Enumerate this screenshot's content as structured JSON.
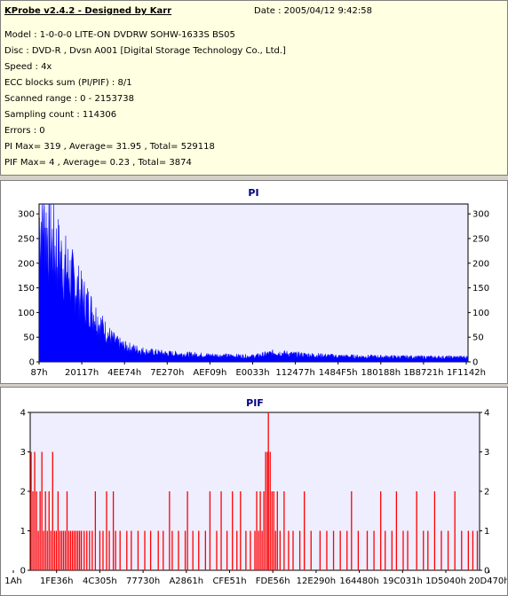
{
  "header": {
    "title": "KProbe v2.4.2 - Designed by Karr",
    "date": "Date : 2005/04/12 9:42:58"
  },
  "info_lines": [
    "Model : 1-0-0-0 LITE-ON DVDRW SOHW-1633S BS05",
    "Disc : DVD-R , Dvsn A001 [Digital Storage Technology Co., Ltd.]",
    "Speed : 4x",
    "ECC blocks sum (PI/PIF) : 8/1",
    "Scanned range : 0 - 2153738",
    "Sampling count : 114306",
    "Errors : 0",
    "PI Max= 319 , Average= 31.95 , Total= 529118",
    "PIF Max= 4 , Average= 0.23 , Total= 3874"
  ],
  "chart_data": [
    {
      "type": "area",
      "title": "PI",
      "color": "#0000ff",
      "background": "#eeeeff",
      "ylim": [
        0,
        320
      ],
      "yticks": [
        0,
        50,
        100,
        150,
        200,
        250,
        300
      ],
      "xticks": [
        "87h",
        "20117h",
        "4EE74h",
        "7E270h",
        "AEF09h",
        "E0033h",
        "112477h",
        "1484F5h",
        "180188h",
        "1B8721h",
        "1F1142h"
      ],
      "x": [
        0,
        0.01,
        0.02,
        0.04,
        0.06,
        0.08,
        0.1,
        0.12,
        0.14,
        0.16,
        0.18,
        0.2,
        0.25,
        0.3,
        0.4,
        0.5,
        0.55,
        0.6,
        0.7,
        0.8,
        0.9,
        1.0
      ],
      "values": [
        300,
        310,
        275,
        240,
        205,
        175,
        140,
        115,
        85,
        60,
        42,
        33,
        22,
        18,
        14,
        12,
        20,
        16,
        12,
        11,
        10,
        10
      ],
      "peak_max": 319
    },
    {
      "type": "bar",
      "title": "PIF",
      "color": "#ff0000",
      "background": "#eeeeff",
      "ylim": [
        0,
        4
      ],
      "yticks": [
        0,
        1,
        2,
        3,
        4
      ],
      "xticks": [
        "1Ah",
        "1FE36h",
        "4C305h",
        "77730h",
        "A2861h",
        "CFE51h",
        "FDE56h",
        "12E290h",
        "164480h",
        "19C031h",
        "1D5040h",
        "20D470h"
      ],
      "points": [
        [
          0.002,
          3
        ],
        [
          0.006,
          2
        ],
        [
          0.01,
          3
        ],
        [
          0.014,
          2
        ],
        [
          0.018,
          1
        ],
        [
          0.022,
          2
        ],
        [
          0.026,
          3
        ],
        [
          0.03,
          1
        ],
        [
          0.034,
          2
        ],
        [
          0.038,
          1
        ],
        [
          0.042,
          2
        ],
        [
          0.046,
          1
        ],
        [
          0.05,
          3
        ],
        [
          0.054,
          1
        ],
        [
          0.058,
          1
        ],
        [
          0.062,
          2
        ],
        [
          0.066,
          1
        ],
        [
          0.07,
          1
        ],
        [
          0.074,
          1
        ],
        [
          0.078,
          1
        ],
        [
          0.082,
          2
        ],
        [
          0.086,
          1
        ],
        [
          0.09,
          1
        ],
        [
          0.094,
          1
        ],
        [
          0.098,
          1
        ],
        [
          0.102,
          1
        ],
        [
          0.106,
          1
        ],
        [
          0.11,
          1
        ],
        [
          0.114,
          1
        ],
        [
          0.12,
          1
        ],
        [
          0.126,
          1
        ],
        [
          0.132,
          1
        ],
        [
          0.138,
          1
        ],
        [
          0.145,
          2
        ],
        [
          0.155,
          1
        ],
        [
          0.162,
          1
        ],
        [
          0.17,
          2
        ],
        [
          0.176,
          1
        ],
        [
          0.185,
          2
        ],
        [
          0.19,
          1
        ],
        [
          0.2,
          1
        ],
        [
          0.215,
          1
        ],
        [
          0.225,
          1
        ],
        [
          0.24,
          1
        ],
        [
          0.255,
          1
        ],
        [
          0.268,
          1
        ],
        [
          0.285,
          1
        ],
        [
          0.296,
          1
        ],
        [
          0.31,
          2
        ],
        [
          0.316,
          1
        ],
        [
          0.33,
          1
        ],
        [
          0.345,
          1
        ],
        [
          0.35,
          2
        ],
        [
          0.362,
          1
        ],
        [
          0.375,
          1
        ],
        [
          0.39,
          1
        ],
        [
          0.4,
          2
        ],
        [
          0.415,
          1
        ],
        [
          0.425,
          2
        ],
        [
          0.438,
          1
        ],
        [
          0.45,
          2
        ],
        [
          0.46,
          1
        ],
        [
          0.468,
          2
        ],
        [
          0.48,
          1
        ],
        [
          0.49,
          1
        ],
        [
          0.5,
          1
        ],
        [
          0.504,
          2
        ],
        [
          0.508,
          1
        ],
        [
          0.512,
          2
        ],
        [
          0.516,
          1
        ],
        [
          0.52,
          2
        ],
        [
          0.524,
          3
        ],
        [
          0.528,
          3
        ],
        [
          0.53,
          4
        ],
        [
          0.534,
          3
        ],
        [
          0.538,
          2
        ],
        [
          0.542,
          2
        ],
        [
          0.546,
          1
        ],
        [
          0.55,
          2
        ],
        [
          0.556,
          1
        ],
        [
          0.565,
          2
        ],
        [
          0.575,
          1
        ],
        [
          0.585,
          1
        ],
        [
          0.6,
          1
        ],
        [
          0.61,
          2
        ],
        [
          0.625,
          1
        ],
        [
          0.645,
          1
        ],
        [
          0.66,
          1
        ],
        [
          0.675,
          1
        ],
        [
          0.69,
          1
        ],
        [
          0.705,
          1
        ],
        [
          0.715,
          2
        ],
        [
          0.73,
          1
        ],
        [
          0.75,
          1
        ],
        [
          0.765,
          1
        ],
        [
          0.78,
          2
        ],
        [
          0.79,
          1
        ],
        [
          0.805,
          1
        ],
        [
          0.815,
          2
        ],
        [
          0.83,
          1
        ],
        [
          0.84,
          1
        ],
        [
          0.86,
          2
        ],
        [
          0.875,
          1
        ],
        [
          0.885,
          1
        ],
        [
          0.9,
          2
        ],
        [
          0.915,
          1
        ],
        [
          0.93,
          1
        ],
        [
          0.945,
          2
        ],
        [
          0.96,
          1
        ],
        [
          0.975,
          1
        ],
        [
          0.985,
          1
        ],
        [
          0.995,
          1
        ]
      ]
    }
  ]
}
